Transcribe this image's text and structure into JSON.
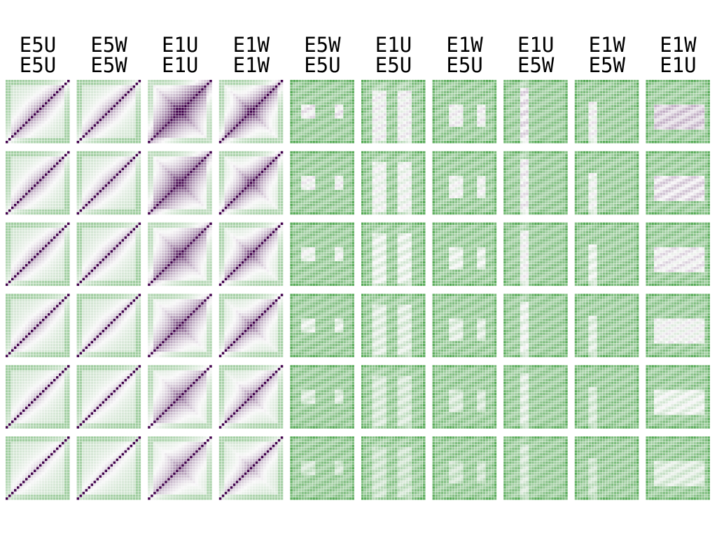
{
  "chart_data": {
    "type": "heatmap",
    "title": "",
    "xlabel": "",
    "ylabel": "",
    "layout": {
      "rows": 6,
      "cols": 10,
      "cells_per_panel": 23
    },
    "colormap": {
      "low": "#3d9e3d",
      "mid": "#f7f7f7",
      "high": "#40004b"
    },
    "columns": [
      {
        "top": "E5U",
        "bottom": "E5U"
      },
      {
        "top": "E5W",
        "bottom": "E5W"
      },
      {
        "top": "E1U",
        "bottom": "E1U"
      },
      {
        "top": "E1W",
        "bottom": "E1W"
      },
      {
        "top": "E5W",
        "bottom": "E5U"
      },
      {
        "top": "E1U",
        "bottom": "E5U"
      },
      {
        "top": "E1W",
        "bottom": "E5U"
      },
      {
        "top": "E1U",
        "bottom": "E5W"
      },
      {
        "top": "E1W",
        "bottom": "E5W"
      },
      {
        "top": "E1W",
        "bottom": "E1U"
      }
    ]
  }
}
